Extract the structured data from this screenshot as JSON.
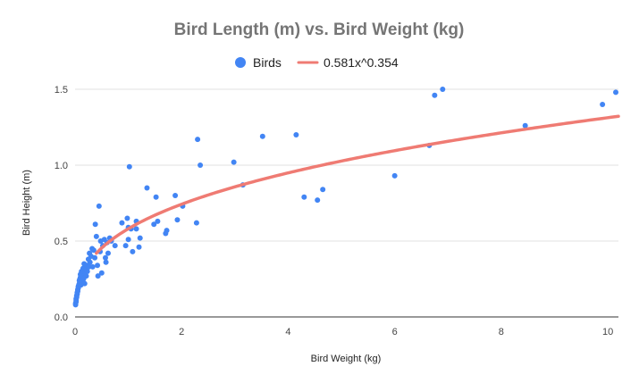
{
  "chart_data": {
    "type": "scatter",
    "title": "Bird Length (m) vs. Bird Weight (kg)",
    "xlabel": "Bird Weight (kg)",
    "ylabel": "Bird Height (m)",
    "xlim": [
      0,
      10.2
    ],
    "ylim": [
      0,
      1.5
    ],
    "x_ticks": [
      0,
      2,
      4,
      6,
      8,
      10
    ],
    "y_ticks": [
      0.0,
      0.5,
      1.0,
      1.5
    ],
    "x_tick_labels": [
      "0",
      "2",
      "4",
      "6",
      "8",
      "10"
    ],
    "y_tick_labels": [
      "0.0",
      "0.5",
      "1.0",
      "1.5"
    ],
    "grid": "horizontal",
    "legend_position": "top-center",
    "series": [
      {
        "name": "Birds",
        "color": "#4285f4",
        "points": [
          [
            0.01,
            0.08
          ],
          [
            0.01,
            0.09
          ],
          [
            0.02,
            0.1
          ],
          [
            0.02,
            0.11
          ],
          [
            0.02,
            0.12
          ],
          [
            0.03,
            0.13
          ],
          [
            0.03,
            0.14
          ],
          [
            0.04,
            0.15
          ],
          [
            0.04,
            0.16
          ],
          [
            0.05,
            0.17
          ],
          [
            0.05,
            0.18
          ],
          [
            0.06,
            0.19
          ],
          [
            0.06,
            0.2
          ],
          [
            0.07,
            0.21
          ],
          [
            0.08,
            0.22
          ],
          [
            0.08,
            0.24
          ],
          [
            0.09,
            0.25
          ],
          [
            0.1,
            0.26
          ],
          [
            0.1,
            0.28
          ],
          [
            0.11,
            0.21
          ],
          [
            0.12,
            0.3
          ],
          [
            0.13,
            0.23
          ],
          [
            0.14,
            0.27
          ],
          [
            0.15,
            0.32
          ],
          [
            0.16,
            0.25
          ],
          [
            0.17,
            0.35
          ],
          [
            0.18,
            0.22
          ],
          [
            0.19,
            0.29
          ],
          [
            0.2,
            0.31
          ],
          [
            0.21,
            0.27
          ],
          [
            0.22,
            0.34
          ],
          [
            0.23,
            0.3
          ],
          [
            0.25,
            0.38
          ],
          [
            0.26,
            0.33
          ],
          [
            0.27,
            0.42
          ],
          [
            0.28,
            0.36
          ],
          [
            0.3,
            0.4
          ],
          [
            0.32,
            0.45
          ],
          [
            0.33,
            0.33
          ],
          [
            0.35,
            0.44
          ],
          [
            0.37,
            0.39
          ],
          [
            0.38,
            0.61
          ],
          [
            0.4,
            0.53
          ],
          [
            0.42,
            0.34
          ],
          [
            0.43,
            0.27
          ],
          [
            0.45,
            0.73
          ],
          [
            0.47,
            0.43
          ],
          [
            0.48,
            0.5
          ],
          [
            0.5,
            0.29
          ],
          [
            0.52,
            0.47
          ],
          [
            0.55,
            0.51
          ],
          [
            0.57,
            0.39
          ],
          [
            0.58,
            0.36
          ],
          [
            0.6,
            0.49
          ],
          [
            0.62,
            0.42
          ],
          [
            0.65,
            0.52
          ],
          [
            0.68,
            0.5
          ],
          [
            0.75,
            0.47
          ],
          [
            0.88,
            0.62
          ],
          [
            0.95,
            0.47
          ],
          [
            0.98,
            0.65
          ],
          [
            1.0,
            0.51
          ],
          [
            1.0,
            0.59
          ],
          [
            1.02,
            0.99
          ],
          [
            1.05,
            0.58
          ],
          [
            1.08,
            0.43
          ],
          [
            1.15,
            0.58
          ],
          [
            1.15,
            0.63
          ],
          [
            1.2,
            0.46
          ],
          [
            1.22,
            0.52
          ],
          [
            1.35,
            0.85
          ],
          [
            1.48,
            0.61
          ],
          [
            1.52,
            0.79
          ],
          [
            1.55,
            0.63
          ],
          [
            1.7,
            0.55
          ],
          [
            1.72,
            0.57
          ],
          [
            1.88,
            0.8
          ],
          [
            1.92,
            0.64
          ],
          [
            2.02,
            0.73
          ],
          [
            2.28,
            0.62
          ],
          [
            2.3,
            1.17
          ],
          [
            2.35,
            1.0
          ],
          [
            2.98,
            1.02
          ],
          [
            3.15,
            0.87
          ],
          [
            3.52,
            1.19
          ],
          [
            4.15,
            1.2
          ],
          [
            4.3,
            0.79
          ],
          [
            4.55,
            0.77
          ],
          [
            4.65,
            0.84
          ],
          [
            6.0,
            0.93
          ],
          [
            6.65,
            1.13
          ],
          [
            6.75,
            1.46
          ],
          [
            6.9,
            1.5
          ],
          [
            8.45,
            1.26
          ],
          [
            9.9,
            1.4
          ],
          [
            10.15,
            1.48
          ]
        ]
      },
      {
        "name": "0.581x^0.354",
        "type": "line",
        "color": "#ef7b73",
        "coefficient": 0.581,
        "exponent": 0.354
      }
    ]
  }
}
